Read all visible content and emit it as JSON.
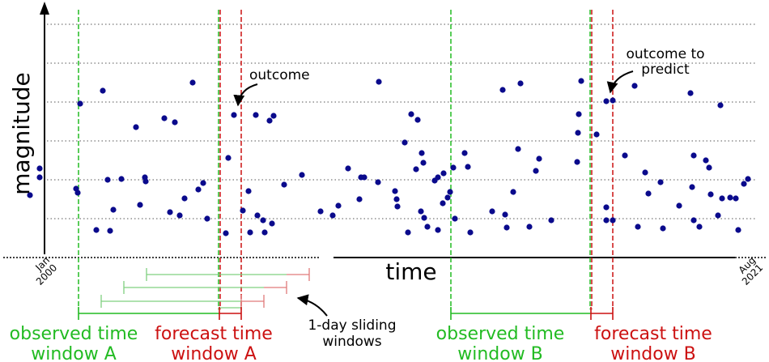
{
  "axes": {
    "ylabel": "magnitude",
    "xlabel": "time",
    "x_start": "Jan\n2000",
    "x_end": "Aug\n2021"
  },
  "annotations": {
    "outcome": "outcome",
    "outcome_to_predict": [
      "outcome to",
      "predict"
    ],
    "sliding_windows": [
      "1-day sliding",
      "windows"
    ]
  },
  "windows": {
    "observed_a": [
      "observed time",
      "window A"
    ],
    "forecast_a": [
      "forecast time",
      "window A"
    ],
    "observed_b": [
      "observed time",
      "window B"
    ],
    "forecast_b": [
      "forecast time",
      "window B"
    ]
  },
  "colors": {
    "observed": "#22bb22",
    "forecast": "#cc1111",
    "points": "#0a0a8c",
    "grid": "#555555",
    "sliding_green": "#7fd07f",
    "sliding_red": "#e07a7a"
  },
  "points": [
    [
      37,
      241
    ],
    [
      49,
      208
    ],
    [
      49,
      219
    ],
    [
      94,
      233
    ],
    [
      96,
      238
    ],
    [
      99,
      128
    ],
    [
      119,
      284
    ],
    [
      127,
      112
    ],
    [
      136,
      285
    ],
    [
      140,
      259
    ],
    [
      133,
      222
    ],
    [
      150,
      221
    ],
    [
      168,
      157
    ],
    [
      173,
      253
    ],
    [
      179,
      219
    ],
    [
      180,
      224
    ],
    [
      203,
      146
    ],
    [
      210,
      262
    ],
    [
      216,
      151
    ],
    [
      222,
      266
    ],
    [
      228,
      245
    ],
    [
      238,
      102
    ],
    [
      245,
      234
    ],
    [
      251,
      226
    ],
    [
      256,
      270
    ],
    [
      279,
      288
    ],
    [
      282,
      195
    ],
    [
      289,
      142
    ],
    [
      300,
      260
    ],
    [
      307,
      236
    ],
    [
      309,
      287
    ],
    [
      316,
      142
    ],
    [
      318,
      266
    ],
    [
      325,
      272
    ],
    [
      327,
      287
    ],
    [
      333,
      149
    ],
    [
      336,
      276
    ],
    [
      338,
      143
    ],
    [
      351,
      228
    ],
    [
      373,
      216
    ],
    [
      396,
      261
    ],
    [
      411,
      266
    ],
    [
      418,
      254
    ],
    [
      430,
      208
    ],
    [
      444,
      246
    ],
    [
      446,
      219
    ],
    [
      450,
      219
    ],
    [
      467,
      225
    ],
    [
      468,
      101
    ],
    [
      488,
      236
    ],
    [
      490,
      246
    ],
    [
      491,
      255
    ],
    [
      500,
      176
    ],
    [
      504,
      287
    ],
    [
      508,
      141
    ],
    [
      514,
      209
    ],
    [
      516,
      148
    ],
    [
      521,
      189
    ],
    [
      520,
      261
    ],
    [
      523,
      201
    ],
    [
      524,
      269
    ],
    [
      528,
      280
    ],
    [
      537,
      223
    ],
    [
      541,
      219
    ],
    [
      541,
      284
    ],
    [
      547,
      251
    ],
    [
      548,
      214
    ],
    [
      553,
      244
    ],
    [
      556,
      237
    ],
    [
      560,
      207
    ],
    [
      562,
      270
    ],
    [
      574,
      189
    ],
    [
      578,
      206
    ],
    [
      581,
      287
    ],
    [
      608,
      261
    ],
    [
      621,
      111
    ],
    [
      624,
      265
    ],
    [
      626,
      281
    ],
    [
      634,
      237
    ],
    [
      640,
      184
    ],
    [
      643,
      103
    ],
    [
      654,
      280
    ],
    [
      662,
      211
    ],
    [
      666,
      196
    ],
    [
      681,
      272
    ],
    [
      713,
      200
    ],
    [
      714,
      164
    ],
    [
      718,
      100
    ],
    [
      715,
      141
    ],
    [
      737,
      166
    ],
    [
      749,
      256
    ],
    [
      749,
      272
    ],
    [
      757,
      272
    ],
    [
      749,
      125
    ],
    [
      757,
      124
    ],
    [
      772,
      192
    ],
    [
      784,
      106
    ],
    [
      788,
      280
    ],
    [
      797,
      213
    ],
    [
      801,
      239
    ],
    [
      816,
      225
    ],
    [
      819,
      282
    ],
    [
      839,
      254
    ],
    [
      853,
      115
    ],
    [
      855,
      231
    ],
    [
      857,
      192
    ],
    [
      857,
      272
    ],
    [
      864,
      280
    ],
    [
      872,
      198
    ],
    [
      876,
      207
    ],
    [
      878,
      240
    ],
    [
      887,
      266
    ],
    [
      890,
      130
    ],
    [
      892,
      245
    ],
    [
      902,
      244
    ],
    [
      909,
      245
    ],
    [
      912,
      284
    ],
    [
      919,
      227
    ],
    [
      924,
      221
    ]
  ]
}
